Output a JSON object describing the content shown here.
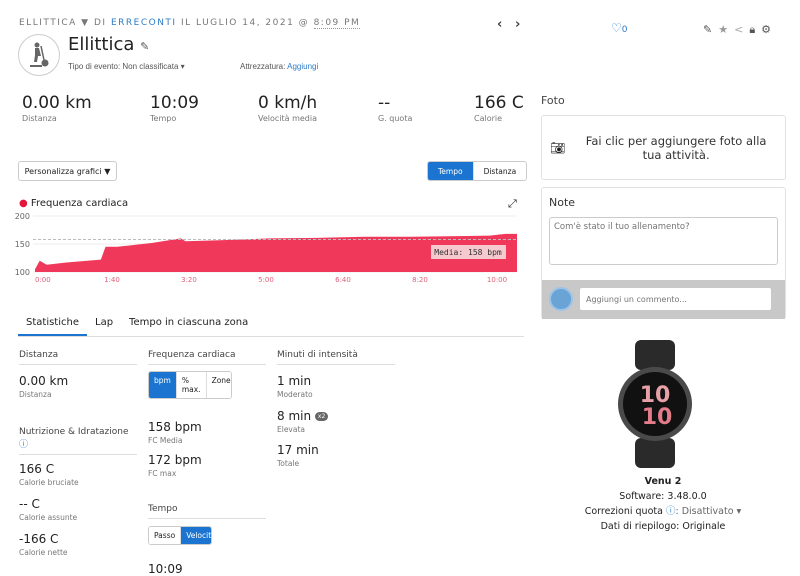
{
  "header": {
    "activity_type": "ELLITTICA",
    "by": "DI",
    "user": "ERRECONTI",
    "date_prefix": "IL LUGLIO 14, 2021 @",
    "time": "8:09 PM",
    "title": "Ellittica",
    "event_type_label": "Tipo di evento: Non classificata",
    "equipment_label": "Attrezzatura:",
    "equipment_link": "Aggiungi",
    "likes": "0"
  },
  "kpis": [
    {
      "value": "0.00 km",
      "label": "Distanza"
    },
    {
      "value": "10:09",
      "label": "Tempo"
    },
    {
      "value": "0 km/h",
      "label": "Velocità media"
    },
    {
      "value": "--",
      "label": "G. quota"
    },
    {
      "value": "166 C",
      "label": "Calorie"
    }
  ],
  "controls": {
    "customize": "Personalizza grafici ▼",
    "tempo": "Tempo",
    "distanza": "Distanza"
  },
  "chart_data": {
    "type": "area",
    "title": "Frequenza cardiaca",
    "color": "#f0385a",
    "ylim": [
      100,
      200
    ],
    "yticks": [
      "200",
      "150",
      "100"
    ],
    "xticks": [
      "0:00",
      "1:40",
      "3:20",
      "5:00",
      "6:40",
      "8:20",
      "10:00"
    ],
    "xlim_seconds": [
      0,
      615
    ],
    "x_seconds": [
      0,
      6,
      15,
      40,
      84,
      90,
      105,
      150,
      186,
      192,
      240,
      300,
      360,
      420,
      480,
      540,
      580,
      600,
      615
    ],
    "y_bpm": [
      105,
      120,
      113,
      117,
      122,
      145,
      145,
      152,
      160,
      155,
      157,
      160,
      161,
      163,
      163,
      164,
      165,
      168,
      168
    ],
    "average_label": "Media: 158 bpm",
    "average": 158
  },
  "tabs": [
    "Statistiche",
    "Lap",
    "Tempo in ciascuna zona"
  ],
  "stats": {
    "distance": {
      "header": "Distanza",
      "value": "0.00 km",
      "label": "Distanza"
    },
    "nutrition": {
      "header": "Nutrizione & Idratazione",
      "items": [
        {
          "value": "166 C",
          "label": "Calorie bruciate"
        },
        {
          "value": "-- C",
          "label": "Calorie assunte"
        },
        {
          "value": "-166 C",
          "label": "Calorie nette"
        }
      ]
    },
    "hr": {
      "header": "Frequenza cardiaca",
      "modes": [
        "bpm",
        "% max.",
        "Zone"
      ],
      "items": [
        {
          "value": "158 bpm",
          "label": "FC Media"
        },
        {
          "value": "172 bpm",
          "label": "FC max"
        }
      ]
    },
    "time": {
      "header": "Tempo",
      "modes": [
        "Passo",
        "Velocità"
      ],
      "partial": "10:09"
    },
    "intensity": {
      "header": "Minuti di intensità",
      "items": [
        {
          "value": "1 min",
          "label": "Moderato"
        },
        {
          "value": "8 min",
          "label": "Elevata",
          "badge": "x2"
        },
        {
          "value": "17 min",
          "label": "Totale"
        }
      ]
    }
  },
  "side": {
    "photo_header": "Foto",
    "photo_cta": "Fai clic per aggiungere foto alla tua attività.",
    "notes_header": "Note",
    "notes_placeholder": "Com'è stato il tuo allenamento?",
    "comment_placeholder": "Aggiungi un commento...",
    "device": "Venu 2",
    "software": "Software: 3.48.0.0",
    "elev_label": "Correzioni quota",
    "elev_value": ": Disattivato ▾",
    "summary": "Dati di riepilogo: Originale",
    "watch_text": "10 10"
  }
}
